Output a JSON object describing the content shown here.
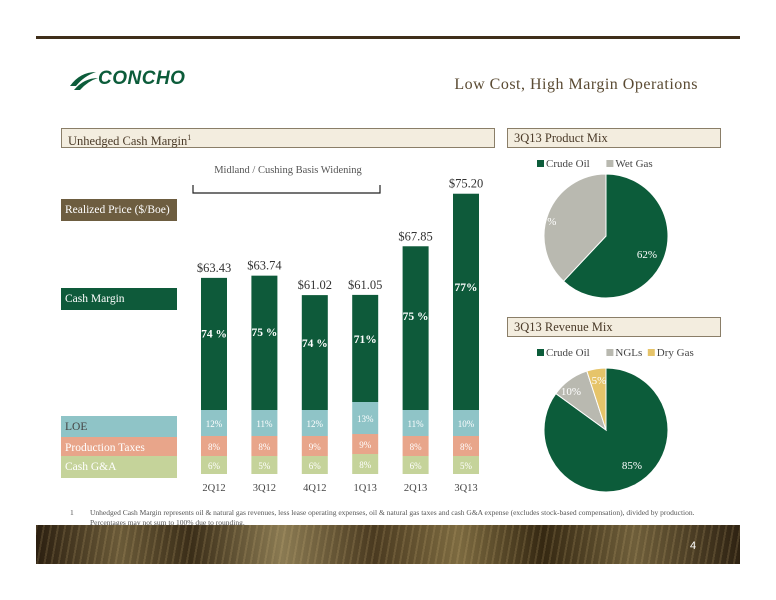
{
  "header": {
    "logo_text": "CONCHO",
    "title": "Low Cost, High Margin Operations"
  },
  "colors": {
    "crude_oil": "#0c5c3a",
    "wet_gas": "#b9b9b0",
    "ngls": "#b9b9b0",
    "dry_gas": "#e6c46a",
    "cash_margin": "#0e5a3a",
    "loe": "#8fc4c7",
    "production_taxes": "#e8a58a",
    "cash_ga": "#c5d39a",
    "price_label": "#6d5d40"
  },
  "left_panel": {
    "header": "Unhedged Cash Margin",
    "header_sup": "1",
    "basis_note": "Midland / Cushing Basis Widening",
    "row_labels": {
      "price": "Realized Price ($/Boe)",
      "margin": "Cash Margin",
      "loe": "LOE",
      "taxes": "Production Taxes",
      "ga": "Cash G&A"
    }
  },
  "chart_data": [
    {
      "type": "bar",
      "stacked": true,
      "categories": [
        "2Q12",
        "3Q12",
        "4Q12",
        "1Q13",
        "2Q13",
        "3Q13"
      ],
      "realized_price": [
        "$63.43",
        "$63.74",
        "$61.02",
        "$61.05",
        "$67.85",
        "$75.20"
      ],
      "realized_price_values": [
        63.43,
        63.74,
        61.02,
        61.05,
        67.85,
        75.2
      ],
      "series": [
        {
          "name": "Cash G&A",
          "values": [
            6,
            5,
            6,
            8,
            6,
            5
          ],
          "labels": [
            "6%",
            "5%",
            "6%",
            "8%",
            "6%",
            "5%"
          ]
        },
        {
          "name": "Production Taxes",
          "values": [
            8,
            8,
            9,
            9,
            8,
            8
          ],
          "labels": [
            "8%",
            "8%",
            "9%",
            "9%",
            "8%",
            "8%"
          ]
        },
        {
          "name": "LOE",
          "values": [
            12,
            11,
            12,
            13,
            11,
            10
          ],
          "labels": [
            "12%",
            "11%",
            "12%",
            "13%",
            "11%",
            "10%"
          ]
        },
        {
          "name": "Cash Margin",
          "values": [
            74,
            75,
            74,
            71,
            75,
            77
          ],
          "labels": [
            "74 %",
            "75 %",
            "74 %",
            "71%",
            "75 %",
            "77%"
          ]
        }
      ]
    },
    {
      "type": "pie",
      "title": "3Q13 Product Mix",
      "legend": [
        "Crude Oil",
        "Wet Gas"
      ],
      "slices": [
        {
          "name": "Crude Oil",
          "value": 62,
          "label": "62%"
        },
        {
          "name": "Wet Gas",
          "value": 38,
          "label": "38 %"
        }
      ]
    },
    {
      "type": "pie",
      "title": "3Q13 Revenue Mix",
      "legend": [
        "Crude Oil",
        "NGLs",
        "Dry Gas"
      ],
      "slices": [
        {
          "name": "Crude Oil",
          "value": 85,
          "label": "85%"
        },
        {
          "name": "NGLs",
          "value": 10,
          "label": "10%"
        },
        {
          "name": "Dry Gas",
          "value": 5,
          "label": "5%"
        }
      ]
    }
  ],
  "footnote": {
    "number": "1",
    "text": "Unhedged Cash Margin represents oil & natural gas revenues, less lease operating expenses, oil & natural gas taxes and cash G&A expense (excludes stock-based compensation), divided by production. Percentages may not sum to 100% due to rounding."
  },
  "page_number": "4"
}
